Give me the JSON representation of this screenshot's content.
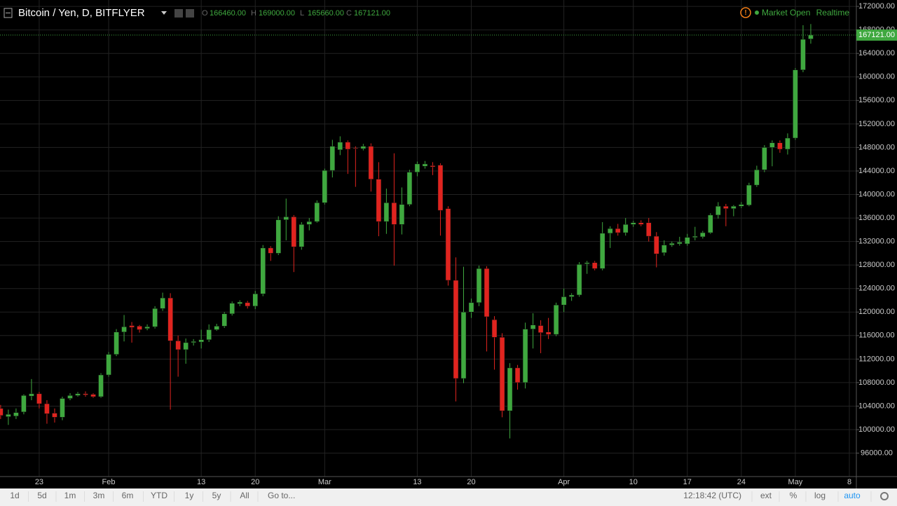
{
  "header": {
    "title": "Bitcoin / Yen, D, BITFLYER",
    "ohlc": [
      {
        "label": "O",
        "value": "166460.00"
      },
      {
        "label": "H",
        "value": "169000.00"
      },
      {
        "label": "L",
        "value": "165660.00"
      },
      {
        "label": "C",
        "value": "167121.00"
      }
    ],
    "status": "Market Open",
    "feed": "Realtime"
  },
  "chart_data": {
    "type": "candlestick",
    "categories": [
      null,
      null,
      null,
      null,
      null,
      "23",
      null,
      null,
      null,
      null,
      null,
      null,
      null,
      null,
      "Feb",
      null,
      null,
      null,
      null,
      null,
      null,
      null,
      null,
      null,
      null,
      null,
      "13",
      null,
      null,
      null,
      null,
      null,
      null,
      "20",
      null,
      null,
      null,
      null,
      null,
      null,
      null,
      null,
      "Mar",
      null,
      null,
      null,
      null,
      null,
      null,
      null,
      null,
      null,
      null,
      null,
      "13",
      null,
      null,
      null,
      null,
      null,
      null,
      "20",
      null,
      null,
      null,
      null,
      null,
      null,
      null,
      null,
      null,
      null,
      null,
      "Apr",
      null,
      null,
      null,
      null,
      null,
      null,
      null,
      null,
      "10",
      null,
      null,
      null,
      null,
      null,
      null,
      "17",
      null,
      null,
      null,
      null,
      null,
      null,
      "24",
      null,
      null,
      null,
      null,
      null,
      null,
      "May",
      null,
      null,
      null,
      null,
      null,
      null,
      "8"
    ],
    "open": [
      103600,
      102200,
      102300,
      103000,
      105700,
      106100,
      104400,
      102800,
      102100,
      105300,
      105800,
      106100,
      106000,
      105600,
      109300,
      112800,
      116600,
      117700,
      117600,
      117200,
      117500,
      120600,
      122400,
      115100,
      113600,
      114800,
      114900,
      115300,
      117000,
      117600,
      119700,
      121400,
      121600,
      121000,
      123100,
      130900,
      130000,
      135700,
      136200,
      131100,
      134900,
      135400,
      138600,
      144100,
      147600,
      148900,
      147900,
      147800,
      148200,
      142600,
      135400,
      138600,
      134900,
      138300,
      143800,
      144800,
      144900,
      145000,
      137600,
      125400,
      108700,
      120000,
      121600,
      127400,
      118700,
      115700,
      103200,
      110500,
      108000,
      117100,
      117700,
      116600,
      116200,
      121200,
      122600,
      122900,
      128200,
      128400,
      127400,
      133400,
      134200,
      133500,
      134900,
      135200,
      135200,
      132900,
      130100,
      131400,
      131600,
      131600,
      132700,
      132800,
      133500,
      136500,
      138000,
      137600,
      138000,
      138200,
      141600,
      144200,
      148000,
      148800,
      147700,
      149600,
      161200,
      166460,
      null,
      null,
      null,
      null,
      null
    ],
    "high": [
      104200,
      103400,
      103600,
      106000,
      108600,
      106400,
      105000,
      103600,
      105600,
      106200,
      106400,
      106500,
      106200,
      109600,
      113200,
      117100,
      119500,
      118300,
      117800,
      117900,
      121000,
      123300,
      123200,
      116000,
      115500,
      115400,
      117000,
      117900,
      118000,
      120000,
      121800,
      122000,
      121900,
      123600,
      131400,
      131200,
      136300,
      139300,
      136500,
      135300,
      136000,
      139000,
      144400,
      149300,
      149900,
      149200,
      148200,
      148600,
      148700,
      145500,
      141000,
      147000,
      141200,
      144200,
      145600,
      145700,
      145500,
      145300,
      138000,
      129300,
      127700,
      122300,
      127900,
      127800,
      119300,
      116400,
      111300,
      111000,
      118200,
      119800,
      118600,
      119000,
      121600,
      124000,
      123200,
      128500,
      128700,
      128700,
      135300,
      134600,
      135000,
      136000,
      135500,
      135600,
      136000,
      133600,
      132200,
      132000,
      132800,
      133300,
      134500,
      133800,
      136800,
      138700,
      138400,
      138200,
      138700,
      142000,
      144900,
      148400,
      149200,
      149200,
      150400,
      161500,
      168800,
      169000,
      null,
      null,
      null,
      null,
      null
    ],
    "low": [
      101800,
      100800,
      101800,
      102600,
      105000,
      103600,
      101000,
      101200,
      101600,
      105000,
      105600,
      105600,
      105400,
      105400,
      109000,
      112500,
      115000,
      114800,
      116500,
      116900,
      117200,
      120200,
      103400,
      109000,
      111200,
      114300,
      113800,
      114900,
      116800,
      117300,
      119400,
      121000,
      120600,
      120500,
      122700,
      128700,
      129700,
      132200,
      126800,
      130600,
      133900,
      135200,
      138300,
      142900,
      146700,
      143500,
      141300,
      147500,
      140500,
      132900,
      133300,
      127900,
      133200,
      138000,
      143100,
      144400,
      143300,
      133000,
      124500,
      104800,
      107900,
      119000,
      121000,
      113300,
      110200,
      102100,
      98500,
      106800,
      107000,
      113800,
      113000,
      115400,
      115900,
      120000,
      121900,
      122600,
      126500,
      127100,
      127100,
      130900,
      133000,
      133000,
      134500,
      134600,
      132000,
      127600,
      129600,
      131100,
      131300,
      131300,
      132200,
      132500,
      133300,
      135900,
      134600,
      136300,
      137700,
      138000,
      141300,
      143800,
      144800,
      147100,
      146800,
      149300,
      160800,
      165660,
      null,
      null,
      null,
      null,
      null
    ],
    "close": [
      102400,
      102600,
      102900,
      105800,
      106100,
      104400,
      102700,
      102100,
      105300,
      105800,
      106100,
      105900,
      105600,
      109300,
      112800,
      116600,
      117500,
      117400,
      117000,
      117500,
      120600,
      122400,
      115100,
      113600,
      114800,
      115000,
      115300,
      117000,
      117600,
      119700,
      121500,
      121700,
      121000,
      123100,
      130900,
      130000,
      135700,
      136200,
      131100,
      134900,
      135400,
      138600,
      144100,
      148200,
      148900,
      147700,
      147800,
      148200,
      142600,
      135400,
      138600,
      134900,
      138300,
      143800,
      145200,
      145200,
      144700,
      137300,
      125400,
      108700,
      120000,
      121600,
      127400,
      119200,
      115700,
      103200,
      110500,
      108000,
      117100,
      117800,
      116500,
      116200,
      121200,
      122600,
      122900,
      128100,
      128400,
      127400,
      133400,
      134200,
      133500,
      134900,
      135200,
      134900,
      132900,
      129900,
      131400,
      131700,
      131900,
      132700,
      132900,
      133500,
      136500,
      138000,
      137600,
      138000,
      138300,
      141600,
      144200,
      148000,
      148800,
      147700,
      149600,
      161200,
      166400,
      167121,
      null,
      null,
      null,
      null,
      null
    ],
    "up_color": "#3fa83f",
    "down_color": "#e0241f",
    "grid": true,
    "log_scale": false,
    "ylim": [
      92010,
      173090
    ],
    "yticks": [
      {
        "value": 96000,
        "label": "96000.00"
      },
      {
        "value": 100000,
        "label": "100000.00"
      },
      {
        "value": 104000,
        "label": "104000.00"
      },
      {
        "value": 108000,
        "label": "108000.00"
      },
      {
        "value": 112000,
        "label": "112000.00"
      },
      {
        "value": 116000,
        "label": "116000.00"
      },
      {
        "value": 120000,
        "label": "120000.00"
      },
      {
        "value": 124000,
        "label": "124000.00"
      },
      {
        "value": 128000,
        "label": "128000.00"
      },
      {
        "value": 132000,
        "label": "132000.00"
      },
      {
        "value": 136000,
        "label": "136000.00"
      },
      {
        "value": 140000,
        "label": "140000.00"
      },
      {
        "value": 144000,
        "label": "144000.00"
      },
      {
        "value": 148000,
        "label": "148000.00"
      },
      {
        "value": 152000,
        "label": "152000.00"
      },
      {
        "value": 156000,
        "label": "156000.00"
      },
      {
        "value": 160000,
        "label": "160000.00"
      },
      {
        "value": 164000,
        "label": "164000.00"
      },
      {
        "value": 168000,
        "label": "168000.00"
      },
      {
        "value": 172000,
        "label": "172000.00"
      }
    ],
    "last_price_label": "167121.00"
  },
  "toolbar": {
    "ranges": [
      "1d",
      "5d",
      "1m",
      "3m",
      "6m",
      "YTD",
      "1y",
      "5y",
      "All"
    ],
    "goto": "Go to...",
    "time": "12:18:42 (UTC)",
    "options": [
      "ext",
      "%",
      "log",
      "auto"
    ]
  }
}
